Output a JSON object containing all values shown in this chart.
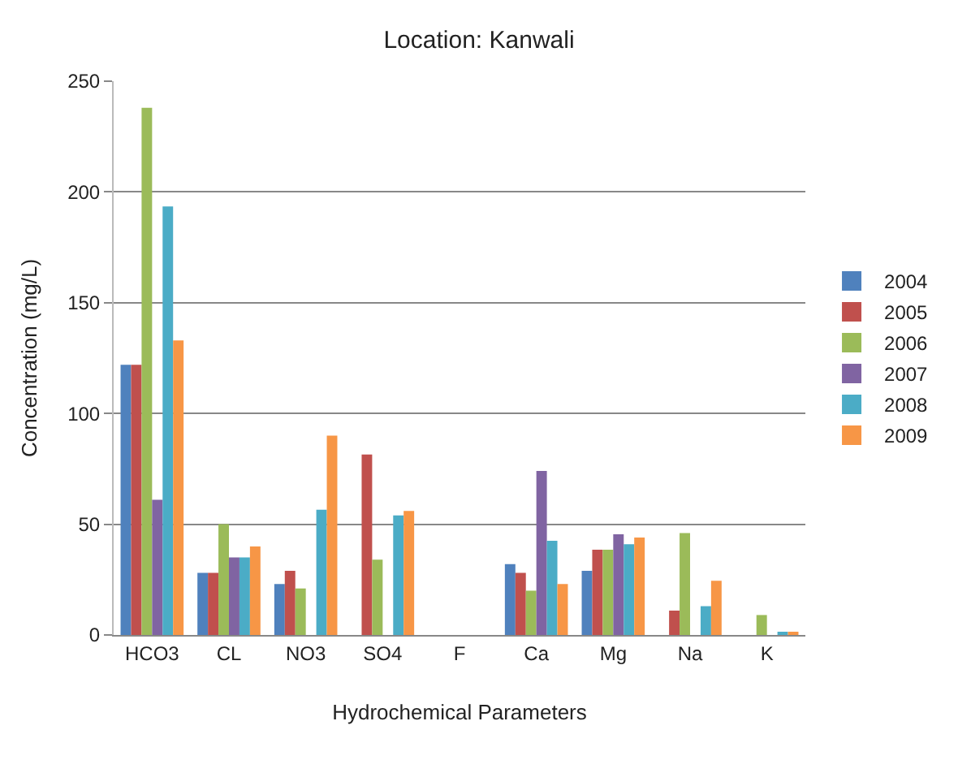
{
  "chart_data": {
    "type": "bar",
    "title": "Location: Kanwali",
    "xlabel": "Hydrochemical Parameters",
    "ylabel": "Concentration (mg/L)",
    "categories": [
      "HCO3",
      "CL",
      "NO3",
      "SO4",
      "F",
      "Ca",
      "Mg",
      "Na",
      "K"
    ],
    "series": [
      {
        "name": "2004",
        "color": "#4f81bd",
        "values": [
          122,
          28,
          23,
          null,
          null,
          32,
          29,
          null,
          null
        ]
      },
      {
        "name": "2005",
        "color": "#c0504d",
        "values": [
          122,
          28,
          29,
          81.5,
          null,
          28,
          38.5,
          11,
          null
        ]
      },
      {
        "name": "2006",
        "color": "#9bbb59",
        "values": [
          238,
          50,
          21,
          34,
          null,
          20,
          38.5,
          46,
          9
        ]
      },
      {
        "name": "2007",
        "color": "#8064a2",
        "values": [
          61,
          35,
          null,
          null,
          null,
          74,
          45.5,
          null,
          null
        ]
      },
      {
        "name": "2008",
        "color": "#4bacc6",
        "values": [
          193.5,
          35,
          56.5,
          54,
          null,
          42.5,
          41,
          13,
          1
        ]
      },
      {
        "name": "2009",
        "color": "#f79646",
        "values": [
          133,
          40,
          90,
          56,
          null,
          23,
          44,
          24.5,
          1
        ]
      }
    ],
    "ylim": [
      0,
      250
    ],
    "yticks": [
      0,
      50,
      100,
      150,
      200,
      250
    ],
    "grid": "y",
    "legend": "right"
  }
}
